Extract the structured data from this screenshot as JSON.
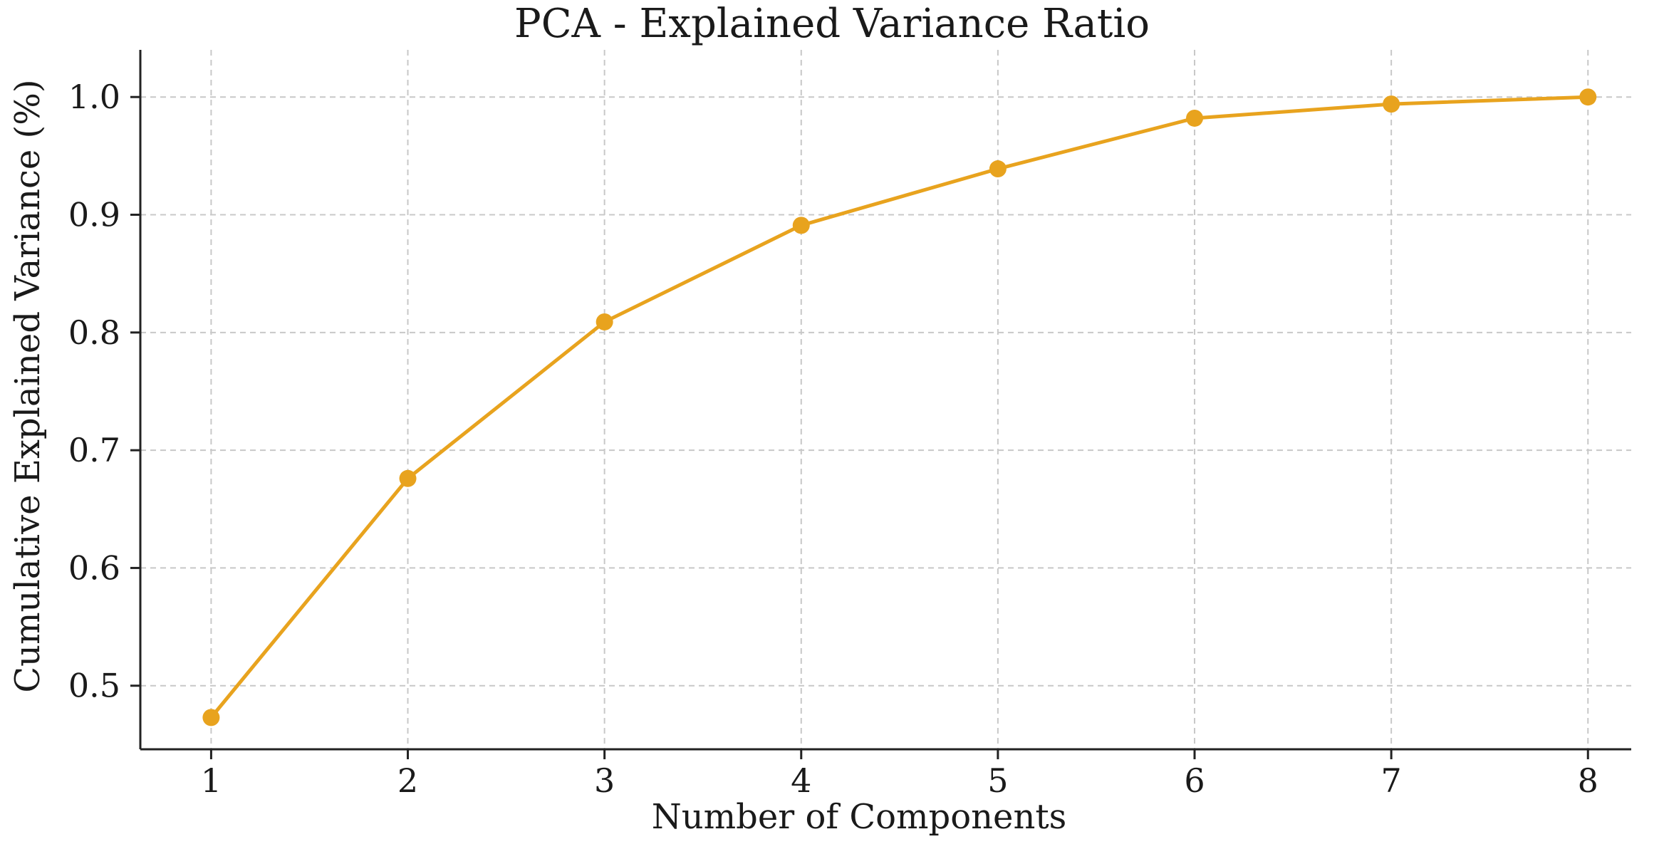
{
  "chart_data": {
    "type": "line",
    "title": "PCA - Explained Variance Ratio",
    "xlabel": "Number of Components",
    "ylabel": "Cumulative Explained Variance (%)",
    "x": [
      1,
      2,
      3,
      4,
      5,
      6,
      7,
      8
    ],
    "series": [
      {
        "name": "Cumulative Explained Variance",
        "values": [
          0.473,
          0.676,
          0.809,
          0.891,
          0.939,
          0.982,
          0.994,
          1.0
        ],
        "color": "#E8A31E"
      }
    ],
    "xticks": [
      "1",
      "2",
      "3",
      "4",
      "5",
      "6",
      "7",
      "8"
    ],
    "yticks": [
      "0.5",
      "0.6",
      "0.7",
      "0.8",
      "0.9",
      "1.0"
    ],
    "xlim": [
      0.64,
      8.22
    ],
    "ylim": [
      0.446,
      1.034
    ],
    "grid": true,
    "legend": "none"
  }
}
